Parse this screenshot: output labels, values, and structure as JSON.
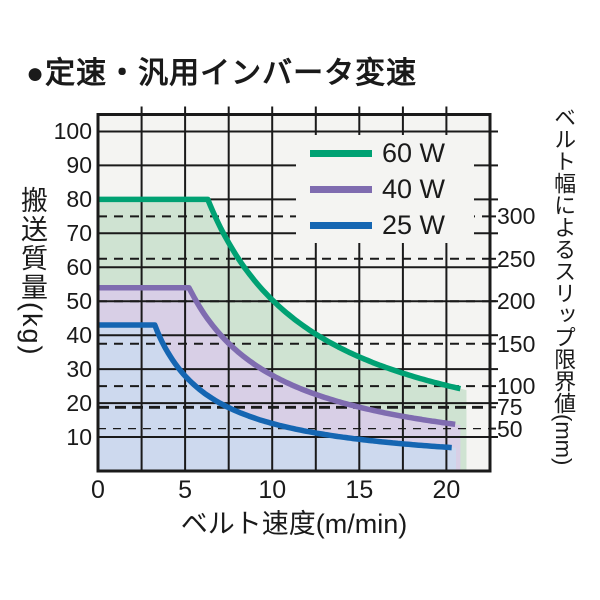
{
  "header": {
    "title": "●定速・汎用インバータ変速"
  },
  "style": {
    "page_bg": "#ffffff",
    "plot_bg": "#f4f4f2",
    "grid_color": "#1a1a1a",
    "text_color": "#1a1a1a"
  },
  "chart_data": {
    "type": "area",
    "title": "●定速・汎用インバータ変速",
    "xlabel": "ベルト速度(m/min)",
    "ylabel": "搬送質量(kg)",
    "y2label": "ベルト幅によるスリップ限界値(mm)",
    "xlim": [
      0,
      22.5
    ],
    "ylim": [
      0,
      105
    ],
    "x_ticks": [
      "0",
      "5",
      "10",
      "15",
      "20"
    ],
    "x_tick_values": [
      0,
      5,
      10,
      15,
      20
    ],
    "x_grid_step": 2.5,
    "y_ticks": [
      "100",
      "90",
      "80",
      "70",
      "60",
      "50",
      "40",
      "30",
      "20",
      "10"
    ],
    "y_tick_values": [
      100,
      90,
      80,
      70,
      60,
      50,
      40,
      30,
      20,
      10
    ],
    "grid": true,
    "legend_position": "top-right",
    "sample_speeds_m_min": [
      0,
      2.5,
      5,
      7.5,
      10,
      12.5,
      15,
      17.5,
      20
    ],
    "series": [
      {
        "name": "60 W",
        "power_w": 60,
        "max_kg": 80,
        "flat_until_m_min": 6.3,
        "mass_x_speed_const": 504,
        "curve_end_m_min": 20.8,
        "fill_end_m_min": 21.15,
        "color": "#00a173",
        "fill": "#cfe3d2",
        "samples_kg": [
          80,
          80,
          80,
          67.2,
          50.4,
          40.3,
          33.6,
          28.8,
          25.2
        ]
      },
      {
        "name": "40 W",
        "power_w": 40,
        "max_kg": 54,
        "flat_until_m_min": 5.22,
        "mass_x_speed_const": 282,
        "curve_end_m_min": 20.5,
        "fill_end_m_min": 20.8,
        "color": "#7f6cb0",
        "fill": "#d8cfe6",
        "samples_kg": [
          54,
          54,
          54,
          37.6,
          28.2,
          22.6,
          18.8,
          16.1,
          14.1
        ]
      },
      {
        "name": "25 W",
        "power_w": 25,
        "max_kg": 43,
        "flat_until_m_min": 3.26,
        "mass_x_speed_const": 140,
        "curve_end_m_min": 20.3,
        "fill_end_m_min": 20.55,
        "color": "#1566b2",
        "fill": "#cdd9ee",
        "samples_kg": [
          43,
          43,
          28,
          18.7,
          14,
          11.2,
          9.3,
          8,
          7
        ]
      }
    ],
    "slip_limit_lines": [
      {
        "mm": "300",
        "kg": 75,
        "style": "normal"
      },
      {
        "mm": "250",
        "kg": 62.5,
        "style": "normal"
      },
      {
        "mm": "200",
        "kg": 50,
        "style": "normal"
      },
      {
        "mm": "150",
        "kg": 37.5,
        "style": "normal"
      },
      {
        "mm": "100",
        "kg": 25,
        "style": "normal"
      },
      {
        "mm": "75",
        "kg": 18.75,
        "style": "bold"
      },
      {
        "mm": "50",
        "kg": 12.5,
        "style": "thin"
      }
    ]
  }
}
